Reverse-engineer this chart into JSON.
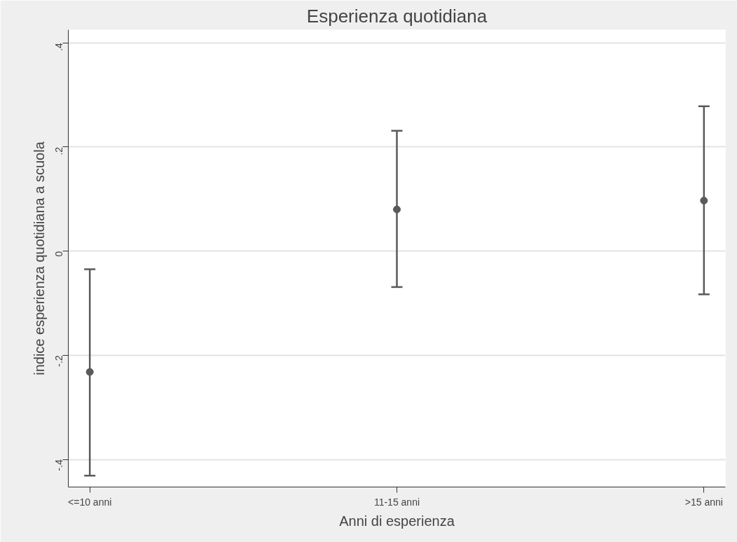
{
  "chart_data": {
    "type": "scatter",
    "title": "Esperienza quotidiana",
    "xlabel": "Anni di esperienza",
    "ylabel": "indice esperienza quotidiana a scuola",
    "categories": [
      "<=10 anni",
      "11-15 anni",
      ">15 anni"
    ],
    "series": [
      {
        "color": "#5a5a5a",
        "values": [
          -0.232,
          0.08,
          0.097
        ],
        "errors": [
          [
            -0.431,
            -0.035
          ],
          [
            -0.069,
            0.231
          ],
          [
            -0.083,
            0.278
          ]
        ]
      }
    ],
    "ylim": [
      -0.453,
      0.425
    ],
    "yticks": [
      {
        "value": -0.4,
        "label": "-.4"
      },
      {
        "value": -0.2,
        "label": "-.2"
      },
      0,
      {
        "value": 0.2,
        "label": ".2"
      },
      {
        "value": 0.4,
        "label": ".4"
      }
    ],
    "grid": "y",
    "marker": "circle"
  }
}
